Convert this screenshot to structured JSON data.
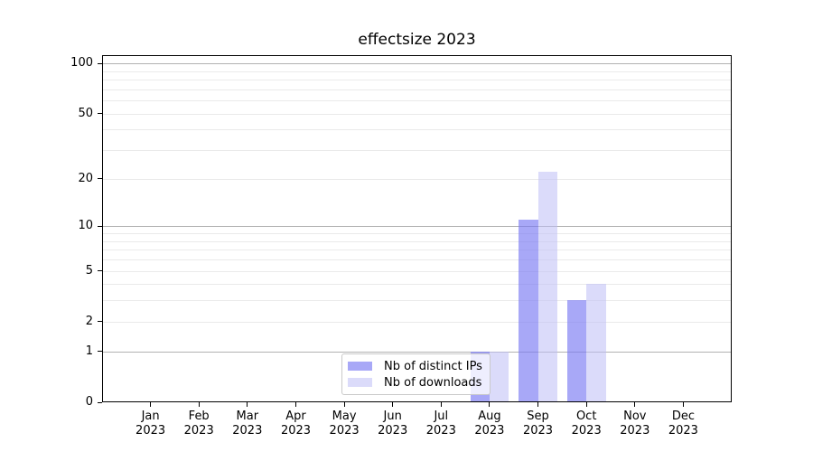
{
  "chart_data": {
    "type": "bar",
    "title": "effectsize 2023",
    "categories": [
      "Jan 2023",
      "Feb 2023",
      "Mar 2023",
      "Apr 2023",
      "May 2023",
      "Jun 2023",
      "Jul 2023",
      "Aug 2023",
      "Sep 2023",
      "Oct 2023",
      "Nov 2023",
      "Dec 2023"
    ],
    "series": [
      {
        "name": "Nb of distinct IPs",
        "color": "rgba(121,121,243,0.65)",
        "solid_color": "#a8a8f7",
        "values": [
          0,
          0,
          0,
          0,
          0,
          0,
          0,
          1,
          11,
          3,
          0,
          0
        ]
      },
      {
        "name": "Nb of downloads",
        "color": "rgba(190,190,246,0.55)",
        "solid_color": "#dbdbfa",
        "values": [
          0,
          0,
          0,
          0,
          0,
          0,
          0,
          1,
          22,
          4,
          0,
          0
        ]
      }
    ],
    "xlabel": "",
    "ylabel": "",
    "y_axis": {
      "scale": "log1p",
      "min": 0,
      "max": 112,
      "tick_values": [
        0,
        1,
        2,
        5,
        10,
        20,
        50,
        100
      ],
      "tick_labels": [
        "0",
        "1",
        "2",
        "5",
        "10",
        "20",
        "50",
        "100"
      ]
    },
    "gridlines": {
      "major": [
        1,
        10,
        100
      ],
      "minor": [
        2,
        3,
        4,
        5,
        6,
        7,
        8,
        9,
        20,
        30,
        40,
        50,
        60,
        70,
        80,
        90
      ],
      "major_color": "#b2b2b2",
      "minor_color": "#eaeaea"
    },
    "legend": {
      "position": "lower-center-inside",
      "entries": [
        "Nb of distinct IPs",
        "Nb of downloads"
      ]
    },
    "colors": {
      "background": "#ffffff",
      "spine": "#000000",
      "text": "#000000"
    }
  }
}
